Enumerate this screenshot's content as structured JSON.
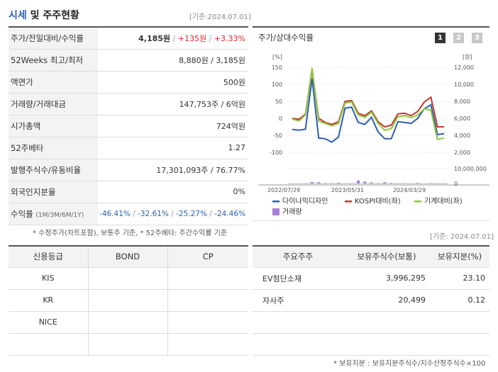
{
  "header": {
    "title_accent": "시세",
    "title_rest": " 및 주주현황",
    "date": "[기준:2024.07.01]"
  },
  "price": {
    "rows": [
      {
        "label": "주가/전일대비/수익률",
        "price": "4,185원",
        "change": "+135원",
        "rate": "+3.33%"
      },
      {
        "label": "52Weeks 최고/최저",
        "value": "8,880원 / 3,185원"
      },
      {
        "label": "액면가",
        "value": "500원"
      },
      {
        "label": "거래량/거래대금",
        "value": "147,753주 / 6억원"
      },
      {
        "label": "시가총액",
        "value": "724억원"
      },
      {
        "label": "52주베타",
        "value": "1.27"
      },
      {
        "label": "발행주식수/유동비율",
        "value": "17,301,093주 / 76.77%"
      },
      {
        "label": "외국인지분율",
        "value": "0%"
      },
      {
        "label": "수익률",
        "label_sub": "(1M/3M/6M/1Y)",
        "r1": "-46.41%",
        "r2": "-32.61%",
        "r3": "-25.27%",
        "r4": "-24.46%"
      }
    ],
    "note": "* 수정주가(차트포함), 보통주 기준, * 52주베타: 주간수익률 기준"
  },
  "chart_panel": {
    "title": "주가/상대수익률",
    "period_buttons": [
      "1",
      "2",
      "3"
    ],
    "active_period": "1",
    "y_left_unit": "[%]",
    "y_right_unit": "[원]",
    "left_ticks": [
      "150",
      "100",
      "50",
      "0",
      "-50",
      "-100"
    ],
    "right_ticks": [
      "12,000",
      "10,000",
      "8,000",
      "6,000",
      "4,000",
      "2,000"
    ],
    "volume_tick_top": "10,000,000",
    "volume_tick_zero": "0",
    "x_ticks": [
      "2022/07/29",
      "2023/05/31",
      "2024/03/29"
    ],
    "legend": [
      {
        "label": "다이나믹디자인",
        "color": "#2b5fb4"
      },
      {
        "label": "KOSPI대비(좌)",
        "color": "#c0392b"
      },
      {
        "label": "기계대비(좌)",
        "color": "#8dc63f"
      },
      {
        "label": "거래량",
        "color": "#a67fd6"
      }
    ]
  },
  "chart_data": {
    "type": "line",
    "ylim_left": [
      -100,
      150
    ],
    "ylim_right": [
      2000,
      12000
    ],
    "series": [
      {
        "name": "다이나믹디자인",
        "color": "#2b5fb4",
        "values": [
          -33,
          -35,
          -32,
          118,
          -58,
          -60,
          -70,
          -55,
          30,
          33,
          -12,
          -18,
          3,
          -40,
          -60,
          -60,
          -10,
          -12,
          -15,
          0,
          28,
          40,
          -48,
          -45
        ]
      },
      {
        "name": "KOSPI대비(좌)",
        "color": "#c0392b",
        "values": [
          0,
          -3,
          12,
          143,
          0,
          -12,
          -18,
          -10,
          50,
          52,
          15,
          8,
          22,
          -10,
          -25,
          -20,
          13,
          15,
          8,
          20,
          48,
          62,
          -25,
          -25
        ]
      },
      {
        "name": "기계대비(좌)",
        "color": "#8dc63f",
        "values": [
          -2,
          -8,
          10,
          148,
          -8,
          -15,
          -22,
          -15,
          45,
          48,
          10,
          3,
          18,
          -15,
          -35,
          -30,
          5,
          8,
          2,
          10,
          28,
          24,
          -62,
          -58
        ]
      }
    ],
    "volume": {
      "name": "거래량",
      "color": "#a67fd6",
      "max": 10000000,
      "values": [
        0,
        0,
        200000,
        1000000,
        800000,
        300000,
        250000,
        500000,
        0,
        200000,
        2000000,
        1300000,
        700000,
        300000,
        900000,
        400000,
        100000,
        200000,
        100000,
        400000,
        0,
        300000,
        250000,
        100000
      ]
    }
  },
  "date_right": "[기준: 2024.07.01]",
  "credit": {
    "headers": [
      "신용등급",
      "BOND",
      "CP"
    ],
    "rows": [
      {
        "agency": "KIS",
        "bond": "",
        "cp": ""
      },
      {
        "agency": "KR",
        "bond": "",
        "cp": ""
      },
      {
        "agency": "NICE",
        "bond": "",
        "cp": ""
      },
      {
        "agency": "",
        "bond": "",
        "cp": ""
      }
    ]
  },
  "holders": {
    "headers": [
      "주요주주",
      "보유주식수(보통)",
      "보유지분(%)"
    ],
    "rows": [
      {
        "name": "EV첨단소재",
        "shares": "3,996,295",
        "pct": "23.10"
      },
      {
        "name": "자사주",
        "shares": "20,499",
        "pct": "0.12"
      },
      {
        "name": "",
        "shares": "",
        "pct": ""
      },
      {
        "name": "",
        "shares": "",
        "pct": ""
      }
    ],
    "note": "* 보유지분 : 보유지분주식수/지수산정주식수×100"
  }
}
